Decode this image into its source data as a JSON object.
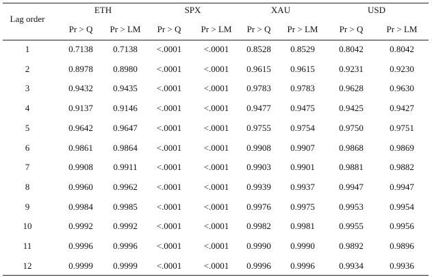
{
  "table": {
    "lag_header": "Lag order",
    "groups": [
      "ETH",
      "SPX",
      "XAU",
      "USD"
    ],
    "subheaders": [
      "Pr > Q",
      "Pr > LM",
      "Pr > Q",
      "Pr > LM",
      "Pr > Q",
      "Pr > LM",
      "Pr > Q",
      "Pr > LM"
    ],
    "rows": [
      [
        "1",
        "0.7138",
        "0.7138",
        "<.0001",
        "<.0001",
        "0.8528",
        "0.8529",
        "0.8042",
        "0.8042"
      ],
      [
        "2",
        "0.8978",
        "0.8980",
        "<.0001",
        "<.0001",
        "0.9615",
        "0.9615",
        "0.9231",
        "0.9230"
      ],
      [
        "3",
        "0.9432",
        "0.9435",
        "<.0001",
        "<.0001",
        "0.9783",
        "0.9783",
        "0.9628",
        "0.9630"
      ],
      [
        "4",
        "0.9137",
        "0.9146",
        "<.0001",
        "<.0001",
        "0.9477",
        "0.9475",
        "0.9425",
        "0.9427"
      ],
      [
        "5",
        "0.9642",
        "0.9647",
        "<.0001",
        "<.0001",
        "0.9755",
        "0.9754",
        "0.9750",
        "0.9751"
      ],
      [
        "6",
        "0.9861",
        "0.9864",
        "<.0001",
        "<.0001",
        "0.9908",
        "0.9907",
        "0.9868",
        "0.9869"
      ],
      [
        "7",
        "0.9908",
        "0.9911",
        "<.0001",
        "<.0001",
        "0.9903",
        "0.9901",
        "0.9881",
        "0.9882"
      ],
      [
        "8",
        "0.9960",
        "0.9962",
        "<.0001",
        "<.0001",
        "0.9939",
        "0.9937",
        "0.9947",
        "0.9947"
      ],
      [
        "9",
        "0.9984",
        "0.9985",
        "<.0001",
        "<.0001",
        "0.9976",
        "0.9975",
        "0.9953",
        "0.9954"
      ],
      [
        "10",
        "0.9992",
        "0.9992",
        "<.0001",
        "<.0001",
        "0.9982",
        "0.9981",
        "0.9955",
        "0.9956"
      ],
      [
        "11",
        "0.9996",
        "0.9996",
        "<.0001",
        "<.0001",
        "0.9990",
        "0.9990",
        "0.9892",
        "0.9896"
      ],
      [
        "12",
        "0.9999",
        "0.9999",
        "<.0001",
        "<.0001",
        "0.9996",
        "0.9996",
        "0.9934",
        "0.9936"
      ]
    ]
  }
}
